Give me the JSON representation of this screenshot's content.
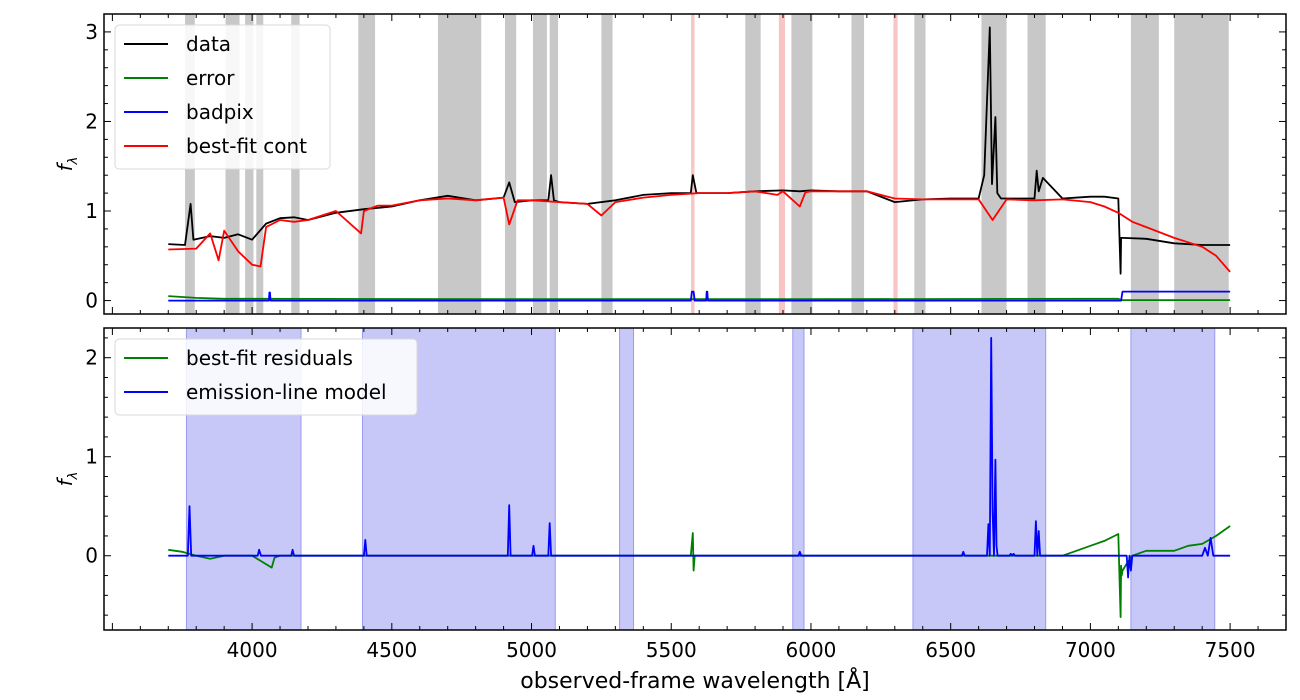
{
  "chart_data": [
    {
      "type": "line",
      "panel": "top",
      "xlabel": "",
      "ylabel": "f_λ",
      "xlim": [
        3470,
        7700
      ],
      "ylim": [
        -0.15,
        3.2
      ],
      "yticks": [
        0,
        1,
        2,
        3
      ],
      "ytick_labels": [
        "0",
        "1",
        "2",
        "3"
      ],
      "legend_position": "upper-left",
      "masked_regions_gray": [
        [
          3760,
          3795
        ],
        [
          3905,
          3955
        ],
        [
          3975,
          4005
        ],
        [
          4015,
          4040
        ],
        [
          4140,
          4170
        ],
        [
          4380,
          4440
        ],
        [
          4665,
          4820
        ],
        [
          4905,
          4945
        ],
        [
          5005,
          5055
        ],
        [
          5065,
          5095
        ],
        [
          5250,
          5290
        ],
        [
          5765,
          5820
        ],
        [
          5930,
          6005
        ],
        [
          6145,
          6190
        ],
        [
          6370,
          6410
        ],
        [
          6610,
          6700
        ],
        [
          6775,
          6840
        ],
        [
          7145,
          7245
        ],
        [
          7300,
          7495
        ]
      ],
      "masked_regions_pink": [
        [
          5571,
          5583
        ],
        [
          5885,
          5907
        ],
        [
          6295,
          6310
        ]
      ],
      "series": [
        {
          "name": "data",
          "color": "#000000",
          "x": [
            3700,
            3760,
            3780,
            3790,
            3850,
            3900,
            3950,
            4000,
            4050,
            4100,
            4150,
            4200,
            4300,
            4400,
            4500,
            4600,
            4700,
            4800,
            4900,
            4920,
            4940,
            5000,
            5060,
            5070,
            5080,
            5100,
            5200,
            5300,
            5400,
            5500,
            5570,
            5577,
            5590,
            5700,
            5800,
            5900,
            5960,
            6000,
            6100,
            6200,
            6300,
            6400,
            6500,
            6600,
            6620,
            6640,
            6648,
            6660,
            6667,
            6680,
            6700,
            6800,
            6808,
            6815,
            6830,
            6900,
            7000,
            7050,
            7100,
            7108,
            7110,
            7115,
            7200,
            7300,
            7400,
            7450,
            7500
          ],
          "y": [
            0.63,
            0.62,
            1.08,
            0.68,
            0.72,
            0.7,
            0.74,
            0.68,
            0.86,
            0.92,
            0.93,
            0.9,
            0.98,
            1.02,
            1.05,
            1.12,
            1.17,
            1.12,
            1.15,
            1.32,
            1.1,
            1.12,
            1.12,
            1.4,
            1.12,
            1.1,
            1.08,
            1.12,
            1.18,
            1.2,
            1.2,
            1.4,
            1.2,
            1.2,
            1.22,
            1.23,
            1.22,
            1.23,
            1.22,
            1.22,
            1.1,
            1.13,
            1.14,
            1.14,
            1.4,
            3.05,
            1.3,
            2.05,
            1.2,
            1.14,
            1.14,
            1.14,
            1.45,
            1.22,
            1.37,
            1.14,
            1.16,
            1.16,
            1.14,
            0.3,
            0.7,
            0.7,
            0.69,
            0.64,
            0.62,
            0.62,
            0.62
          ]
        },
        {
          "name": "error",
          "color": "#008000",
          "x": [
            3700,
            3800,
            3900,
            4000,
            5000,
            6000,
            7000,
            7100,
            7110,
            7300,
            7500
          ],
          "y": [
            0.05,
            0.03,
            0.02,
            0.02,
            0.015,
            0.015,
            0.02,
            0.02,
            0.005,
            0.005,
            0.005
          ]
        },
        {
          "name": "badpix",
          "color": "#0000ff",
          "x": [
            3700,
            4060,
            4062,
            4064,
            4066,
            5570,
            5574,
            5580,
            5584,
            5625,
            5627,
            5629,
            5631,
            7110,
            7115,
            7500
          ],
          "y": [
            0.0,
            0.0,
            0.09,
            0.09,
            0.0,
            0.0,
            0.1,
            0.1,
            0.0,
            0.0,
            0.1,
            0.1,
            0.0,
            0.0,
            0.1,
            0.1
          ]
        },
        {
          "name": "best-fit cont",
          "color": "#ff0000",
          "x": [
            3700,
            3800,
            3850,
            3880,
            3900,
            3950,
            4000,
            4030,
            4050,
            4100,
            4150,
            4200,
            4300,
            4390,
            4400,
            4450,
            4500,
            4600,
            4700,
            4800,
            4900,
            4920,
            4950,
            5000,
            5100,
            5200,
            5250,
            5300,
            5400,
            5500,
            5600,
            5700,
            5800,
            5880,
            5900,
            5960,
            5980,
            6000,
            6100,
            6200,
            6300,
            6400,
            6500,
            6600,
            6650,
            6700,
            6800,
            6900,
            7000,
            7050,
            7100,
            7150,
            7200,
            7300,
            7400,
            7450,
            7500
          ],
          "y": [
            0.57,
            0.58,
            0.75,
            0.45,
            0.78,
            0.55,
            0.4,
            0.38,
            0.82,
            0.9,
            0.88,
            0.9,
            1.0,
            0.75,
            1.0,
            1.06,
            1.06,
            1.12,
            1.14,
            1.12,
            1.15,
            0.85,
            1.12,
            1.12,
            1.1,
            1.08,
            0.95,
            1.1,
            1.15,
            1.18,
            1.2,
            1.2,
            1.22,
            1.18,
            1.22,
            1.05,
            1.21,
            1.22,
            1.22,
            1.22,
            1.14,
            1.13,
            1.13,
            1.13,
            0.9,
            1.13,
            1.12,
            1.13,
            1.1,
            1.05,
            0.98,
            0.88,
            0.82,
            0.7,
            0.6,
            0.5,
            0.32
          ]
        }
      ]
    },
    {
      "type": "line",
      "panel": "bottom",
      "xlabel": "observed-frame wavelength [Å]",
      "ylabel": "f_λ",
      "xlim": [
        3470,
        7700
      ],
      "ylim": [
        -0.75,
        2.3
      ],
      "xticks": [
        4000,
        4500,
        5000,
        5500,
        6000,
        6500,
        7000,
        7500
      ],
      "xtick_labels": [
        "4000",
        "4500",
        "5000",
        "5500",
        "6000",
        "6500",
        "7000",
        "7500"
      ],
      "yticks": [
        0,
        1,
        2
      ],
      "ytick_labels": [
        "0",
        "1",
        "2"
      ],
      "legend_position": "upper-left",
      "fit_regions_blue": [
        [
          3765,
          4175
        ],
        [
          4395,
          5085
        ],
        [
          5315,
          5365
        ],
        [
          5935,
          5975
        ],
        [
          6365,
          6840
        ],
        [
          7145,
          7445
        ]
      ],
      "series": [
        {
          "name": "best-fit residuals",
          "color": "#008000",
          "x": [
            3700,
            3750,
            3800,
            3850,
            3900,
            4000,
            4070,
            4080,
            4100,
            4200,
            4500,
            5000,
            5500,
            5570,
            5577,
            5580,
            5584,
            5600,
            6000,
            6500,
            6900,
            6950,
            7000,
            7050,
            7100,
            7108,
            7110,
            7112,
            7115,
            7130,
            7150,
            7200,
            7300,
            7350,
            7400,
            7450,
            7500
          ],
          "y": [
            0.06,
            0.04,
            0.0,
            -0.03,
            0.0,
            0.0,
            -0.12,
            -0.02,
            0.0,
            0.0,
            0.0,
            0.0,
            0.0,
            0.0,
            0.23,
            -0.15,
            0.0,
            0.0,
            0.0,
            0.0,
            0.0,
            0.05,
            0.1,
            0.15,
            0.22,
            -0.62,
            -0.1,
            -0.2,
            -0.15,
            -0.08,
            0.0,
            0.05,
            0.05,
            0.1,
            0.12,
            0.2,
            0.3
          ]
        },
        {
          "name": "emission-line model",
          "color": "#0000ff",
          "x": [
            3700,
            3770,
            3776,
            3782,
            3788,
            3800,
            4020,
            4025,
            4032,
            4040,
            4140,
            4145,
            4150,
            4155,
            4400,
            4405,
            4410,
            4415,
            4915,
            4920,
            4925,
            4930,
            5002,
            5007,
            5012,
            5060,
            5065,
            5070,
            5075,
            5900,
            5955,
            5960,
            5965,
            6540,
            6545,
            6550,
            6630,
            6635,
            6640,
            6645,
            6650,
            6655,
            6660,
            6664,
            6668,
            6672,
            6678,
            6710,
            6715,
            6720,
            6725,
            6730,
            6735,
            6800,
            6805,
            6810,
            6815,
            6820,
            6825,
            6830,
            7130,
            7135,
            7140,
            7145,
            7150,
            7200,
            7300,
            7400,
            7410,
            7420,
            7430,
            7440,
            7450,
            7500
          ],
          "y": [
            0.0,
            0.0,
            0.5,
            0.0,
            0.0,
            0.0,
            0.0,
            0.06,
            0.0,
            0.0,
            0.0,
            0.06,
            0.0,
            0.0,
            0.0,
            0.16,
            0.0,
            0.0,
            0.0,
            0.51,
            0.0,
            0.0,
            0.0,
            0.1,
            0.0,
            0.0,
            0.33,
            0.0,
            0.0,
            0.0,
            0.0,
            0.04,
            0.0,
            0.0,
            0.04,
            0.0,
            0.0,
            0.32,
            0.0,
            2.2,
            0.45,
            0.0,
            0.97,
            0.1,
            0.0,
            0.0,
            0.0,
            0.0,
            0.02,
            0.0,
            0.02,
            0.0,
            0.0,
            0.0,
            0.35,
            0.0,
            0.25,
            0.0,
            0.0,
            0.0,
            0.0,
            -0.22,
            0.0,
            -0.15,
            0.0,
            0.0,
            0.0,
            0.0,
            0.08,
            0.0,
            0.18,
            0.0,
            0.0,
            0.0
          ]
        }
      ]
    }
  ]
}
